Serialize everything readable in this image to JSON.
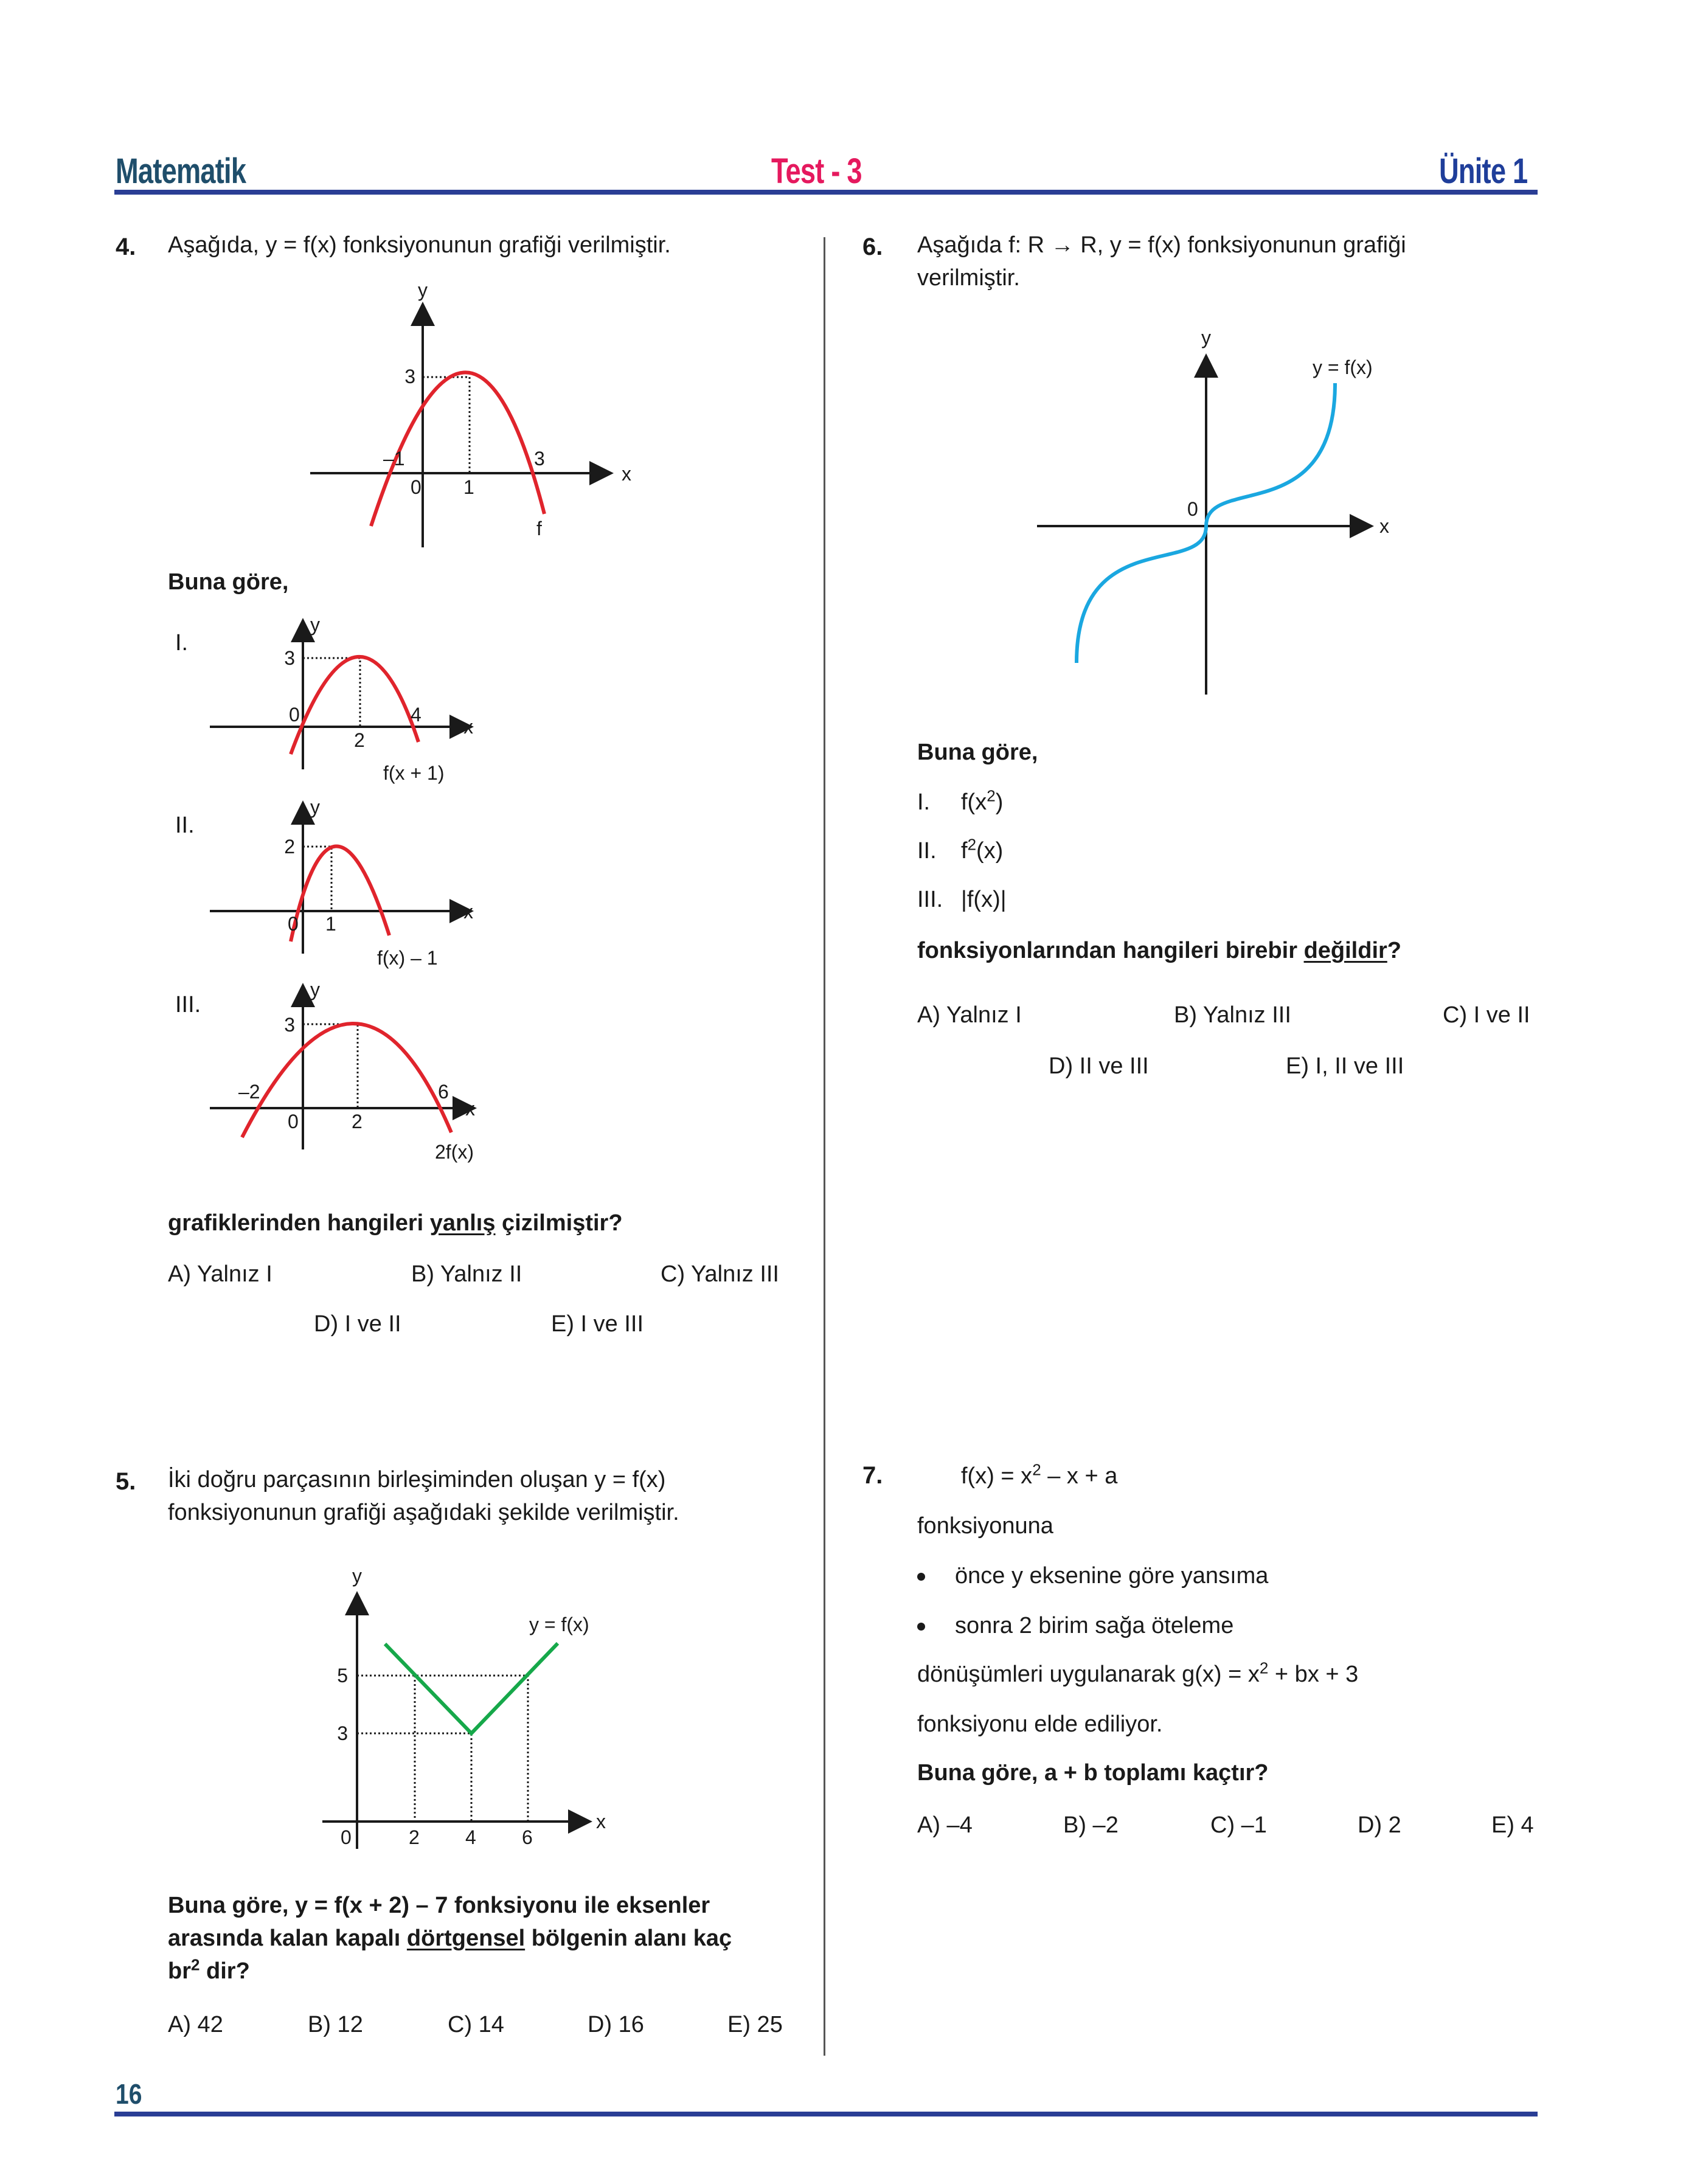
{
  "header": {
    "left": "Matematik",
    "center": "Test - 3",
    "right": "Ünite 1"
  },
  "footer": {
    "page_number": "16"
  },
  "colors": {
    "header_left": "#1f4e6b",
    "header_center": "#e5195e",
    "header_right": "#1f3e9a",
    "rule": "#2a3e95",
    "curve_red": "#e0242c",
    "curve_blue": "#1aa7e0",
    "curve_green": "#16a84a"
  },
  "q4": {
    "number": "4.",
    "stem": "Aşağıda, y = f(x) fonksiyonunun grafiği verilmiştir.",
    "main_graph": {
      "y_axis": "y",
      "x_axis": "x",
      "y_tick": "3",
      "x_neg": "–1",
      "origin": "0",
      "x_vertex": "1",
      "x_root": "3",
      "curve": "f"
    },
    "buna_gore": "Buna göre,",
    "graph_I": {
      "roman": "I.",
      "y_axis": "y",
      "x_axis": "x",
      "y_tick": "3",
      "origin": "0",
      "x_vertex": "2",
      "x_root": "4",
      "label": "f(x + 1)"
    },
    "graph_II": {
      "roman": "II.",
      "y_axis": "y",
      "x_axis": "x",
      "y_tick": "2",
      "origin": "0",
      "x_vertex": "1",
      "label": "f(x) – 1"
    },
    "graph_III": {
      "roman": "III.",
      "y_axis": "y",
      "x_axis": "x",
      "y_tick": "3",
      "x_neg": "–2",
      "origin": "0",
      "x_vertex": "2",
      "x_root": "6",
      "label": "2f(x)"
    },
    "question_pre": "grafiklerinden hangileri ",
    "question_u": "yanlış",
    "question_post": " çizilmiştir?",
    "options": [
      "A) Yalnız I",
      "B) Yalnız II",
      "C) Yalnız III",
      "D) I ve II",
      "E) I ve III"
    ]
  },
  "q5": {
    "number": "5.",
    "stem_line1": "İki doğru parçasının birleşiminden oluşan y = f(x)",
    "stem_line2": "fonksiyonunun grafiği aşağıdaki şekilde verilmiştir.",
    "graph": {
      "y_axis": "y",
      "x_axis": "x",
      "y_tick_5": "5",
      "y_tick_3": "3",
      "origin": "0",
      "x_2": "2",
      "x_4": "4",
      "x_6": "6",
      "label": "y = f(x)"
    },
    "question_line1": "Buna göre, y = f(x + 2) – 7 fonksiyonu ile eksenler",
    "question_line2_pre": "arasında kalan kapalı ",
    "question_line2_u": "dörtgensel",
    "question_line2_post": " bölgenin alanı kaç",
    "question_line3_br": "br",
    "question_line3_sup": "2",
    "question_line3_post": " dir?",
    "options": [
      "A) 42",
      "B) 12",
      "C) 14",
      "D) 16",
      "E) 25"
    ]
  },
  "q6": {
    "number": "6.",
    "stem_line1": "Aşağıda  f: R → R,  y = f(x) fonksiyonunun grafiği",
    "stem_line2": "verilmiştir.",
    "graph": {
      "y_axis": "y",
      "x_axis": "x",
      "origin": "0",
      "label": "y = f(x)"
    },
    "buna_gore": "Buna göre,",
    "items": [
      {
        "roman": "I.",
        "pre": "f(x",
        "sup": "2",
        "post": ")"
      },
      {
        "roman": "II.",
        "pre": "f",
        "sup": "2",
        "post": "(x)"
      },
      {
        "roman": "III.",
        "pre": "|f(x)|",
        "sup": "",
        "post": ""
      }
    ],
    "question_pre": "fonksiyonlarından hangileri birebir ",
    "question_u": "değildir",
    "question_post": "?",
    "options": [
      "A) Yalnız I",
      "B) Yalnız III",
      "C) I ve II",
      "D) II ve III",
      "E) I, II ve III"
    ]
  },
  "q7": {
    "number": "7.",
    "formula_pre": "f(x) = x",
    "formula_sup": "2",
    "formula_post": " – x + a",
    "line_fonksiyonuna": "fonksiyonuna",
    "bullet1": "önce y eksenine göre yansıma",
    "bullet2": "sonra 2 birim sağa öteleme",
    "line_donusum_pre": "dönüşümleri uygulanarak g(x) = x",
    "line_donusum_sup": "2",
    "line_donusum_post": " + bx + 3",
    "line_elde": "fonksiyonu elde ediliyor.",
    "question": "Buna göre, a + b toplamı kaçtır?",
    "options": [
      "A) –4",
      "B) –2",
      "C) –1",
      "D) 2",
      "E) 4"
    ]
  }
}
